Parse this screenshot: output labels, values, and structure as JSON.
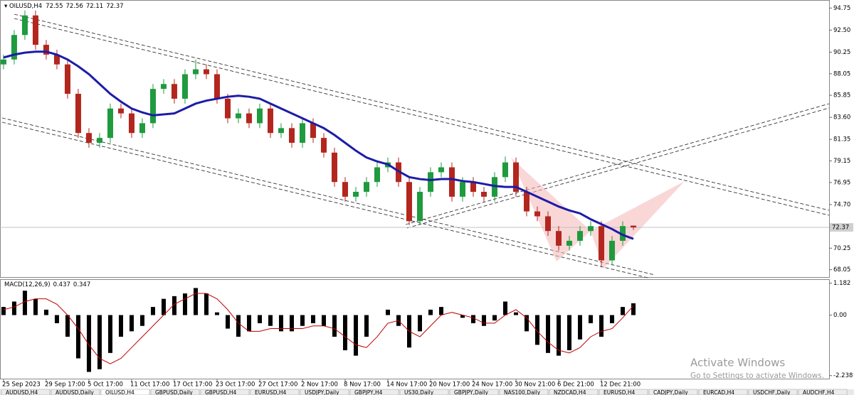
{
  "chart_data": [
    {
      "type": "candlestick",
      "title": "OILUSD,H4",
      "x": [
        0,
        1,
        2,
        3,
        4,
        5,
        6,
        7,
        8,
        9,
        10,
        11,
        12,
        13,
        14,
        15,
        16,
        17,
        18,
        19,
        20,
        21,
        22,
        23,
        24,
        25,
        26,
        27,
        28,
        29,
        30,
        31,
        32,
        33,
        34,
        35,
        36,
        37,
        38,
        39,
        40,
        41,
        42,
        43,
        44,
        45,
        46,
        47,
        48,
        49,
        50,
        51,
        52,
        53,
        54,
        55,
        56,
        57,
        58,
        59
      ],
      "open": [
        89,
        89.5,
        92,
        94,
        91,
        90,
        89,
        86,
        82,
        81,
        81.5,
        84.5,
        84,
        82,
        83,
        86.5,
        87,
        85.5,
        88,
        88.5,
        88,
        85.5,
        83.5,
        84,
        83,
        84.5,
        82,
        82.5,
        81,
        83,
        81.5,
        80,
        77,
        75.5,
        76,
        77,
        78.5,
        79,
        77,
        73,
        76,
        78,
        78.5,
        75.5,
        77,
        76,
        75.5,
        77.5,
        79,
        76,
        74,
        73.5,
        72,
        70.5,
        71,
        72,
        72.5,
        69,
        71,
        72.55
      ],
      "high": [
        90,
        92.5,
        94.5,
        94.5,
        91.5,
        90.5,
        89.5,
        86.5,
        82.5,
        82,
        85,
        85,
        84.5,
        83.5,
        87,
        87.5,
        87.5,
        88.5,
        89.5,
        89,
        88.5,
        86,
        84.5,
        84.5,
        85,
        85,
        83,
        83,
        83.5,
        83.5,
        82,
        80.5,
        77.5,
        76.5,
        77.5,
        79,
        79.5,
        79.5,
        77.5,
        76.5,
        78.5,
        79,
        79,
        77.5,
        77.5,
        76.5,
        78,
        79.6,
        79.5,
        76.5,
        74.5,
        74,
        72.5,
        71.5,
        72.5,
        73,
        73,
        71.5,
        73,
        72.56
      ],
      "low": [
        88.5,
        89,
        91.5,
        90.5,
        89.5,
        88.5,
        85.5,
        81.5,
        80.5,
        80.5,
        81,
        83.5,
        81.5,
        81.5,
        82.5,
        86,
        85,
        85,
        87.5,
        87.5,
        85,
        83,
        83,
        82.5,
        82.5,
        81.5,
        81.5,
        80.5,
        80.5,
        81,
        79.5,
        76.5,
        75,
        75,
        75.5,
        76.5,
        78,
        76.5,
        72.6,
        72.6,
        75.5,
        77.5,
        75,
        75,
        75.5,
        75,
        75,
        77,
        75.5,
        73.5,
        73,
        71.5,
        70,
        70,
        70.5,
        71.5,
        68.3,
        68.5,
        70.5,
        72.11
      ],
      "close": [
        89.5,
        92,
        94,
        91,
        90,
        89,
        86,
        82,
        81,
        81.5,
        84.5,
        84,
        82,
        83,
        86.5,
        87,
        85.5,
        88,
        88.5,
        88,
        85.5,
        83.5,
        84,
        83,
        84.5,
        82,
        82.5,
        81,
        83,
        81.5,
        80,
        77,
        75.5,
        76,
        77,
        78.5,
        79,
        77,
        73,
        76,
        78,
        78.5,
        75.5,
        77,
        76,
        75.5,
        77.5,
        79,
        76,
        74,
        73.5,
        72,
        70.5,
        71,
        72,
        72.5,
        69,
        71,
        72.5,
        72.37
      ],
      "up_color": "#1f9a3e",
      "down_color": "#b3261e",
      "series": [
        {
          "name": "MA",
          "color": "#1c1ca8",
          "values": [
            89.7,
            90,
            90.2,
            90.3,
            90.3,
            90,
            89.5,
            88.8,
            88,
            87,
            86,
            85.2,
            84.5,
            84.1,
            83.8,
            83.9,
            84,
            84.5,
            85,
            85.3,
            85.5,
            85.7,
            85.8,
            85.7,
            85.5,
            85,
            84.5,
            84,
            83.5,
            83,
            82.5,
            81.8,
            81,
            80.2,
            79.5,
            79.1,
            78.8,
            78.1,
            77.5,
            77.3,
            77.2,
            77.3,
            77.3,
            77.1,
            77,
            76.8,
            76.6,
            76.5,
            76.5,
            76,
            75.5,
            75,
            74.5,
            74.1,
            73.8,
            73.2,
            72.7,
            72.2,
            71.6,
            71.2
          ]
        }
      ],
      "xlim": [
        -0.33,
        77.33
      ],
      "xticks": [
        {
          "value": 0,
          "label": "25 Sep 2023"
        },
        {
          "value": 4,
          "label": "29 Sep 17:00"
        },
        {
          "value": 8,
          "label": "5 Oct 17:00"
        },
        {
          "value": 12,
          "label": "11 Oct 17:00"
        },
        {
          "value": 16,
          "label": "17 Oct 17:00"
        },
        {
          "value": 20,
          "label": "23 Oct 17:00"
        },
        {
          "value": 24,
          "label": "27 Oct 17:00"
        },
        {
          "value": 28,
          "label": "2 Nov 17:00"
        },
        {
          "value": 32,
          "label": "8 Nov 17:00"
        },
        {
          "value": 36,
          "label": "14 Nov 17:00"
        },
        {
          "value": 40,
          "label": "20 Nov 17:00"
        },
        {
          "value": 44,
          "label": "24 Nov 17:00"
        },
        {
          "value": 48,
          "label": "30 Nov 21:00"
        },
        {
          "value": 52,
          "label": "6 Dec 21:00"
        },
        {
          "value": 56,
          "label": "12 Dec 21:00"
        }
      ],
      "ylim": [
        67.3,
        95.5
      ],
      "yticks": [
        94.75,
        {
          "value": 92.5,
          "label": "92.50"
        },
        90.25,
        88.05,
        85.85,
        {
          "value": 83.6,
          "label": "83.60"
        },
        81.35,
        79.15,
        76.95,
        {
          "value": 74.7,
          "label": "74.70"
        },
        70.25,
        68.05
      ]
    },
    {
      "type": "bar",
      "title": "MACD(12,26,9)",
      "ylim": [
        -2.35,
        1.3
      ],
      "yticks": [
        1.182,
        {
          "value": 0,
          "label": "0.00"
        },
        -2.238
      ],
      "series": [
        {
          "name": "MACD",
          "color": "#000000",
          "values": [
            0.3,
            0.5,
            0.9,
            0.6,
            0.2,
            -0.3,
            -0.8,
            -1.6,
            -2.1,
            -2.0,
            -1.4,
            -0.8,
            -0.6,
            -0.4,
            0.3,
            0.6,
            0.7,
            0.8,
            1.0,
            0.8,
            0.1,
            -0.5,
            -0.8,
            -0.6,
            -0.3,
            -0.4,
            -0.6,
            -0.6,
            -0.4,
            -0.3,
            -0.4,
            -0.8,
            -1.3,
            -1.5,
            -0.8,
            0.0,
            0.2,
            -0.4,
            -1.2,
            -0.6,
            0.2,
            0.3,
            0.0,
            -0.1,
            -0.3,
            -0.4,
            -0.2,
            0.5,
            0.1,
            -0.6,
            -1.1,
            -1.4,
            -1.5,
            -1.3,
            -0.9,
            -0.3,
            -0.8,
            -0.3,
            0.3,
            0.437
          ]
        },
        {
          "name": "Signal",
          "color": "#c00000",
          "values": [
            0.2,
            0.3,
            0.5,
            0.6,
            0.6,
            0.4,
            0.0,
            -0.5,
            -1.1,
            -1.6,
            -1.8,
            -1.6,
            -1.2,
            -0.8,
            -0.4,
            0.0,
            0.4,
            0.6,
            0.8,
            0.8,
            0.6,
            0.2,
            -0.3,
            -0.6,
            -0.6,
            -0.5,
            -0.5,
            -0.5,
            -0.5,
            -0.4,
            -0.4,
            -0.5,
            -0.8,
            -1.1,
            -1.2,
            -0.8,
            -0.3,
            -0.2,
            -0.6,
            -0.8,
            -0.4,
            0.0,
            0.1,
            0.0,
            -0.1,
            -0.3,
            -0.3,
            0.0,
            0.2,
            -0.1,
            -0.6,
            -1.0,
            -1.3,
            -1.4,
            -1.2,
            -0.8,
            -0.6,
            -0.5,
            -0.1,
            0.347
          ]
        }
      ]
    }
  ],
  "tabs": [
    "AUDUSD,H4",
    "AUDUSD,Daily",
    "OILUSD,H4",
    "GBPUSD,Daily",
    "GBPUSD,H4",
    "EURUSD,H4",
    "USDJPY,Daily",
    "GBPJPY,H4",
    "US30,Daily",
    "GBPJPY,Daily",
    "NAS100,Daily",
    "NZDCAD,H4",
    "EURUSD,H4",
    "CADJPY,Daily",
    "EURCAD,H4",
    "USDCHF,Daily",
    "AUDCHF,H4"
  ],
  "watermark": {
    "title": "Activate Windows",
    "subtitle": "Go to Settings to activate Windows."
  }
}
